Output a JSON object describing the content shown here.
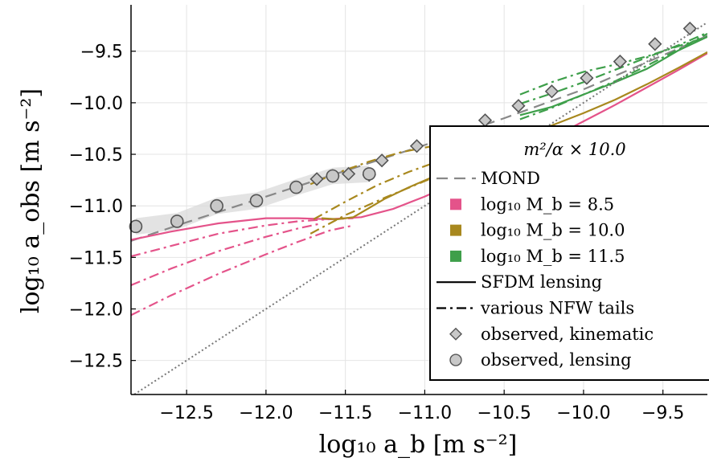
{
  "chart_data": {
    "type": "line",
    "xlabel": "log₁₀ a_b [m s⁻²]",
    "ylabel": "log₁₀ a_obs [m s⁻²]",
    "xlim": [
      -12.85,
      -9.22
    ],
    "ylim": [
      -12.83,
      -9.05
    ],
    "x_ticks": [
      -12.5,
      -12.0,
      -11.5,
      -11.0,
      -10.5,
      -10.0,
      -9.5
    ],
    "y_ticks": [
      -9.5,
      -10.0,
      -10.5,
      -11.0,
      -11.5,
      -12.0,
      -12.5
    ],
    "x_tick_labels": [
      "−12.5",
      "−12.0",
      "−11.5",
      "−11.0",
      "−10.5",
      "−10.0",
      "−9.5"
    ],
    "y_tick_labels": [
      "−9.5",
      "−10.0",
      "−10.5",
      "−11.0",
      "−11.5",
      "−12.0",
      "−12.5"
    ],
    "grid": true,
    "legend_position": "right",
    "legend_title": "m²/α × 10.0",
    "colors": {
      "pink": "#e4538a",
      "gold": "#a8881e",
      "green": "#3e9f4a",
      "mond": "#888888",
      "marker_fill": "#c8c8c8",
      "marker_edge": "#555555"
    },
    "legend_entries": [
      {
        "label": "MOND",
        "kind": "dash",
        "color": "#888888"
      },
      {
        "label": "log₁₀ M_b = 8.5",
        "kind": "square",
        "color": "#e4538a"
      },
      {
        "label": "log₁₀ M_b = 10.0",
        "kind": "square",
        "color": "#a8881e"
      },
      {
        "label": "log₁₀ M_b = 11.5",
        "kind": "square",
        "color": "#3e9f4a"
      },
      {
        "label": "SFDM lensing",
        "kind": "solid",
        "color": "#000000"
      },
      {
        "label": "various NFW tails",
        "kind": "dashdot",
        "color": "#000000"
      },
      {
        "label": "observed, kinematic",
        "kind": "diamond",
        "color": "#c8c8c8"
      },
      {
        "label": "observed, lensing",
        "kind": "circle",
        "color": "#c8c8c8"
      }
    ],
    "series": [
      {
        "name": "observed, kinematic",
        "marker": "diamond",
        "x": [
          -11.68,
          -11.58,
          -11.48,
          -11.35,
          -11.27,
          -11.05,
          -10.83,
          -10.62,
          -10.41,
          -10.2,
          -9.98,
          -9.77,
          -9.55,
          -9.33
        ],
        "y": [
          -10.74,
          -10.71,
          -10.69,
          -10.7,
          -10.56,
          -10.42,
          -10.3,
          -10.17,
          -10.03,
          -9.89,
          -9.76,
          -9.6,
          -9.43,
          -9.28
        ]
      },
      {
        "name": "observed, lensing",
        "marker": "circle",
        "x": [
          -12.82,
          -12.56,
          -12.31,
          -12.06,
          -11.81,
          -11.58,
          -11.35
        ],
        "y": [
          -11.2,
          -11.15,
          -11.0,
          -10.95,
          -10.82,
          -10.71,
          -10.69
        ]
      },
      {
        "name": "MOND",
        "style": "dash",
        "x": [
          -12.85,
          -12.5,
          -12.0,
          -11.5,
          -11.0,
          -10.5,
          -10.0,
          -9.5,
          -9.22
        ],
        "y": [
          -11.34,
          -11.16,
          -10.91,
          -10.66,
          -10.41,
          -10.15,
          -9.87,
          -9.54,
          -9.35
        ]
      },
      {
        "name": "log₁₀ M_b = 8.5 SFDM lensing",
        "style": "solid",
        "x": [
          -12.85,
          -12.6,
          -12.3,
          -12.0,
          -11.8,
          -11.6,
          -11.4,
          -11.2,
          -11.0,
          -10.8,
          -10.6,
          -10.4,
          -10.2,
          -10.0,
          -9.8,
          -9.6,
          -9.4,
          -9.22
        ],
        "y": [
          -11.33,
          -11.25,
          -11.17,
          -11.12,
          -11.12,
          -11.13,
          -11.11,
          -11.03,
          -10.91,
          -10.77,
          -10.63,
          -10.48,
          -10.34,
          -10.18,
          -10.02,
          -9.85,
          -9.68,
          -9.52
        ]
      },
      {
        "name": "log₁₀ M_b = 8.5 NFW tail 1",
        "style": "dashdot",
        "x": [
          -12.85,
          -12.6,
          -12.3,
          -12.0,
          -11.8,
          -11.6,
          -11.45
        ],
        "y": [
          -11.49,
          -11.39,
          -11.27,
          -11.19,
          -11.15,
          -11.13,
          -11.12
        ]
      },
      {
        "name": "log₁₀ M_b = 8.5 NFW tail 2",
        "style": "dashdot",
        "x": [
          -12.85,
          -12.6,
          -12.3,
          -12.0,
          -11.8,
          -11.65
        ],
        "y": [
          -11.77,
          -11.61,
          -11.44,
          -11.3,
          -11.22,
          -11.17
        ]
      },
      {
        "name": "log₁₀ M_b = 8.5 NFW tail 3",
        "style": "dashdot",
        "x": [
          -12.85,
          -12.6,
          -12.3,
          -12.0,
          -11.8,
          -11.6,
          -11.45
        ],
        "y": [
          -12.06,
          -11.87,
          -11.66,
          -11.47,
          -11.35,
          -11.24,
          -11.19
        ]
      },
      {
        "name": "log₁₀ M_b = 10.0 SFDM lensing",
        "style": "solid",
        "x": [
          -11.65,
          -11.55,
          -11.45,
          -11.35,
          -11.25,
          -11.1,
          -10.95,
          -10.8,
          -10.6,
          -10.4,
          -10.2,
          -10.0,
          -9.8,
          -9.6,
          -9.4,
          -9.22
        ],
        "y": [
          -11.12,
          -11.13,
          -11.11,
          -11.02,
          -10.93,
          -10.82,
          -10.72,
          -10.62,
          -10.45,
          -10.33,
          -10.22,
          -10.1,
          -9.97,
          -9.82,
          -9.66,
          -9.51
        ]
      },
      {
        "name": "log₁₀ M_b = 10.0 NFW tail 1",
        "style": "dashdot",
        "x": [
          -11.72,
          -11.55,
          -11.35,
          -11.15,
          -10.95,
          -10.75,
          -10.55,
          -10.4
        ],
        "y": [
          -10.79,
          -10.68,
          -10.57,
          -10.48,
          -10.42,
          -10.38,
          -10.37,
          -10.36
        ]
      },
      {
        "name": "log₁₀ M_b = 10.0 NFW tail 2",
        "style": "dashdot",
        "x": [
          -11.7,
          -11.5,
          -11.3,
          -11.1,
          -10.9,
          -10.7,
          -10.5,
          -10.4
        ],
        "y": [
          -11.13,
          -10.96,
          -10.8,
          -10.67,
          -10.56,
          -10.46,
          -10.4,
          -10.38
        ]
      },
      {
        "name": "log₁₀ M_b = 10.0 NFW tail 3",
        "style": "dashdot",
        "x": [
          -11.72,
          -11.5,
          -11.25,
          -11.0,
          -10.75,
          -10.55,
          -10.4
        ],
        "y": [
          -11.27,
          -11.09,
          -10.92,
          -10.76,
          -10.6,
          -10.48,
          -10.4
        ]
      },
      {
        "name": "log₁₀ M_b = 11.5 SFDM lensing",
        "style": "solid",
        "x": [
          -10.4,
          -10.2,
          -10.0,
          -9.8,
          -9.6,
          -9.4,
          -9.22
        ],
        "y": [
          -10.12,
          -10.04,
          -9.92,
          -9.8,
          -9.67,
          -9.49,
          -9.36
        ]
      },
      {
        "name": "log₁₀ M_b = 11.5 NFW tail 1",
        "style": "dashdot",
        "x": [
          -10.4,
          -10.2,
          -10.0,
          -9.8,
          -9.6,
          -9.4,
          -9.22
        ],
        "y": [
          -9.92,
          -9.8,
          -9.7,
          -9.63,
          -9.55,
          -9.45,
          -9.36
        ]
      },
      {
        "name": "log₁₀ M_b = 11.5 NFW tail 2",
        "style": "dashdot",
        "x": [
          -10.4,
          -10.2,
          -10.0,
          -9.8,
          -9.6,
          -9.4,
          -9.22
        ],
        "y": [
          -10.01,
          -9.91,
          -9.8,
          -9.68,
          -9.56,
          -9.44,
          -9.32
        ]
      },
      {
        "name": "log₁₀ M_b = 11.5 NFW tail 3",
        "style": "dashdot",
        "x": [
          -10.4,
          -10.2,
          -10.0,
          -9.8,
          -9.6,
          -9.4,
          -9.22
        ],
        "y": [
          -10.16,
          -10.05,
          -9.92,
          -9.79,
          -9.64,
          -9.48,
          -9.33
        ]
      },
      {
        "name": "1:1 line",
        "style": "dotted",
        "x": [
          -12.85,
          -9.22
        ],
        "y": [
          -12.85,
          -9.22
        ]
      }
    ]
  }
}
